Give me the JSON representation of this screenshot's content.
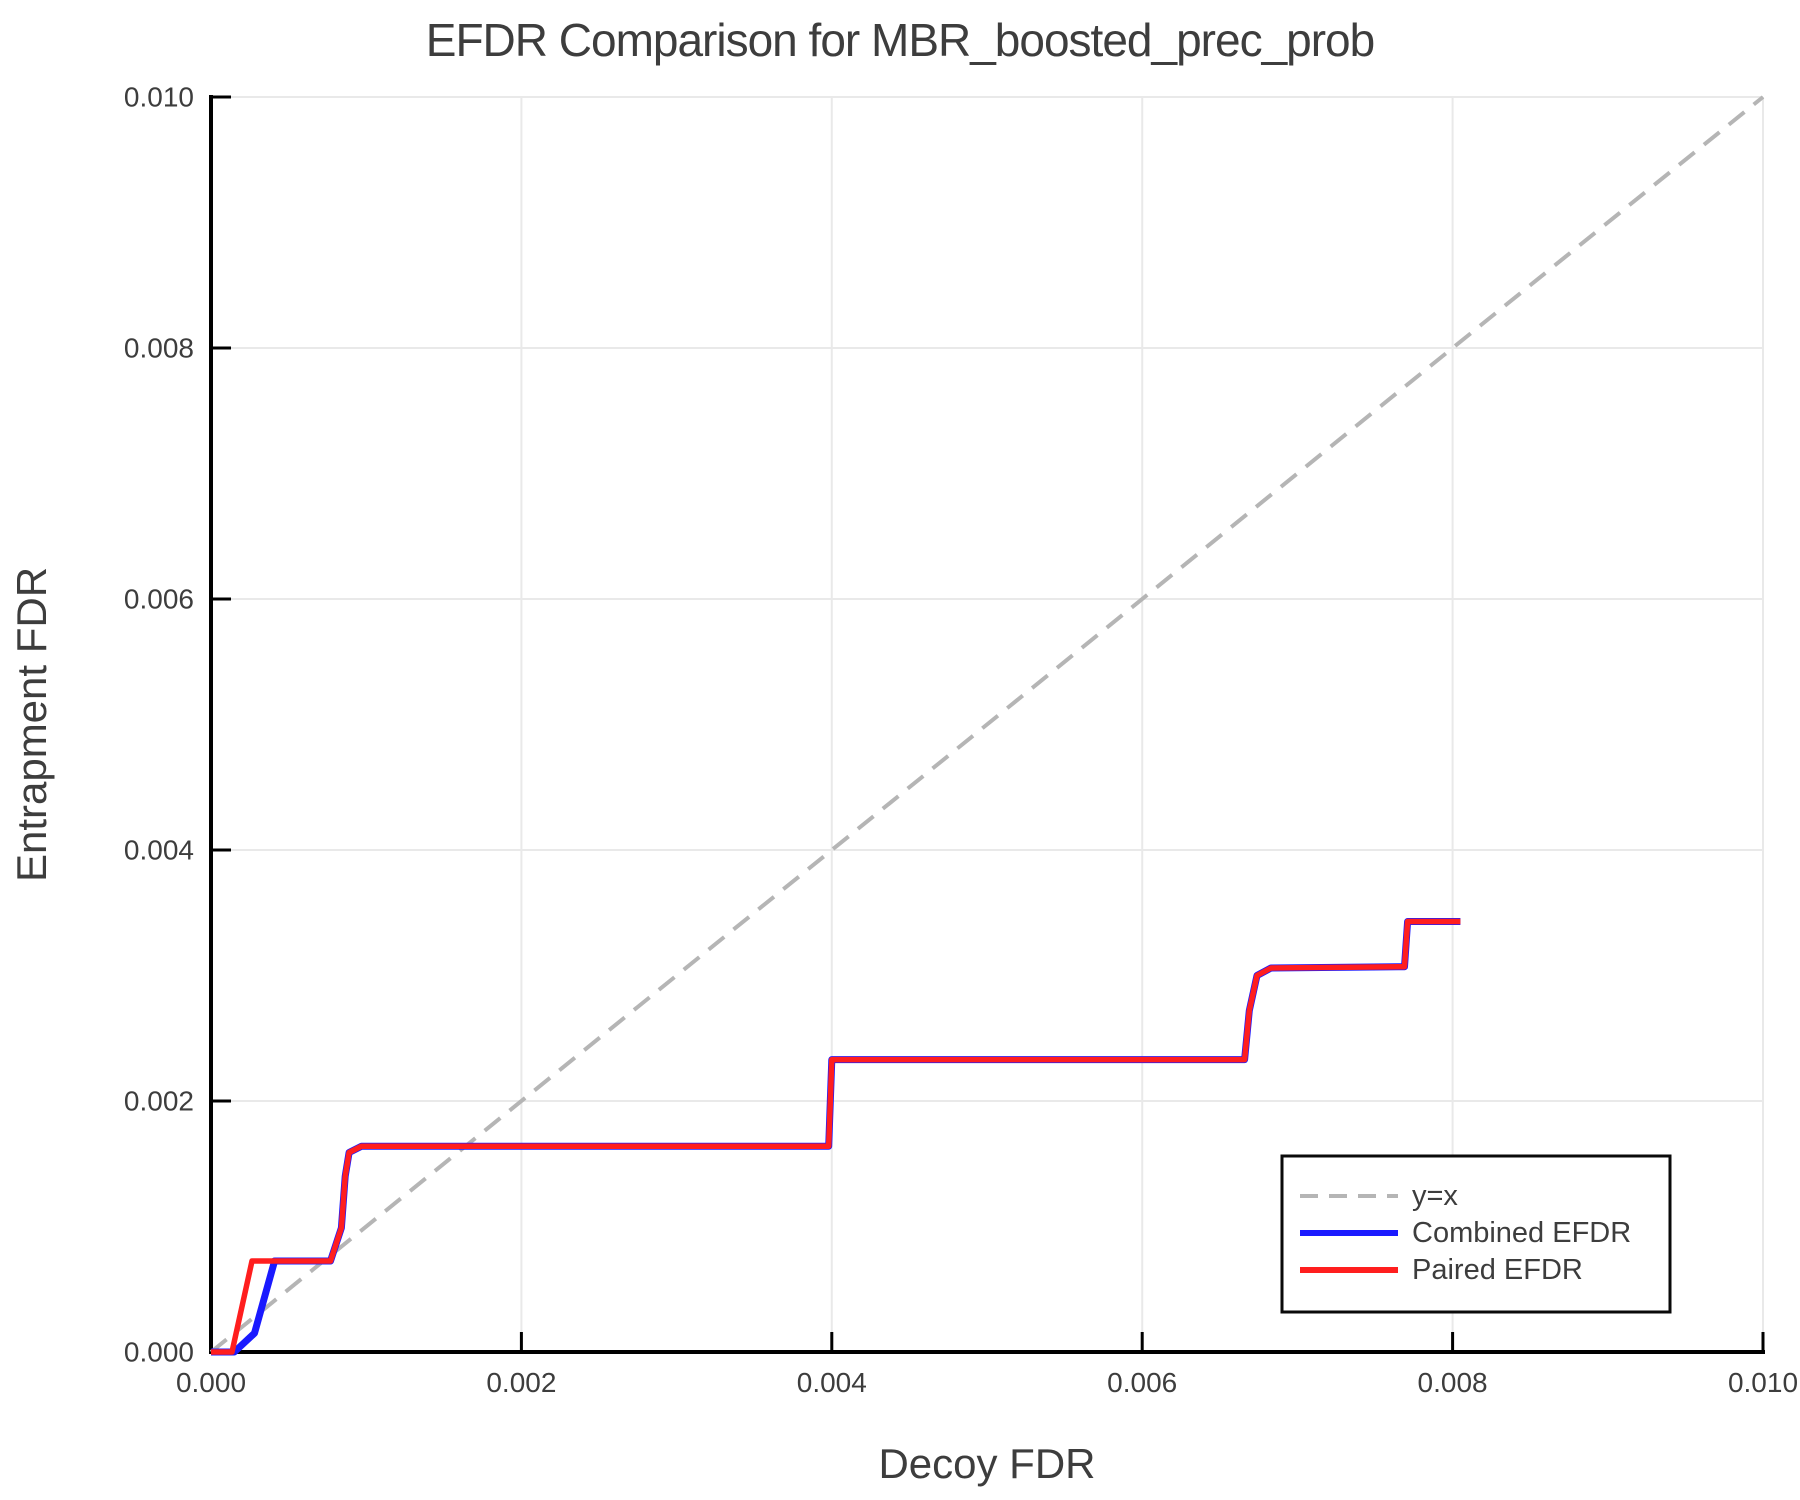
{
  "chart_data": {
    "type": "line",
    "title": "EFDR Comparison for MBR_boosted_prec_prob",
    "xlabel": "Decoy FDR",
    "ylabel": "Entrapment FDR",
    "xlim": [
      0,
      0.01
    ],
    "ylim": [
      0,
      0.01
    ],
    "xticks": [
      0,
      0.002,
      0.004,
      0.006,
      0.008,
      0.01
    ],
    "xtick_labels": [
      "0.000",
      "0.002",
      "0.004",
      "0.006",
      "0.008",
      "0.010"
    ],
    "yticks": [
      0,
      0.002,
      0.004,
      0.006,
      0.008,
      0.01
    ],
    "ytick_labels": [
      "0.000",
      "0.002",
      "0.004",
      "0.006",
      "0.008",
      "0.010"
    ],
    "grid": true,
    "grid_color": "#e9e9e9",
    "axis_color": "#000000",
    "text_color": "#3d3d3d",
    "legend_position": "lower right",
    "series": [
      {
        "name": "y=x",
        "color": "#b5b5b5",
        "dash": true,
        "width": 4,
        "points": [
          [
            0,
            0
          ],
          [
            0.01,
            0.01
          ]
        ]
      },
      {
        "name": "Combined EFDR",
        "color": "#1a1aff",
        "dash": false,
        "width": 7,
        "points": [
          [
            0,
            0
          ],
          [
            0.00015,
            0
          ],
          [
            0.00028,
            0.00015
          ],
          [
            0.00041,
            0.000725
          ],
          [
            0.00077,
            0.000725
          ],
          [
            0.00084,
            0.00099
          ],
          [
            0.000865,
            0.0014
          ],
          [
            0.00089,
            0.00159
          ],
          [
            0.00097,
            0.00164
          ],
          [
            0.00398,
            0.00164
          ],
          [
            0.004,
            0.00233
          ],
          [
            0.00666,
            0.00233
          ],
          [
            0.00669,
            0.00272
          ],
          [
            0.00674,
            0.003
          ],
          [
            0.00683,
            0.00306
          ],
          [
            0.00769,
            0.00307
          ],
          [
            0.00771,
            0.00343
          ],
          [
            0.00805,
            0.00343
          ]
        ]
      },
      {
        "name": "Paired EFDR",
        "color": "#ff1e1e",
        "dash": false,
        "width": 5.5,
        "points": [
          [
            0,
            0
          ],
          [
            0.000135,
            0
          ],
          [
            0.000264,
            0.000725
          ],
          [
            0.00077,
            0.000725
          ],
          [
            0.00084,
            0.00099
          ],
          [
            0.000865,
            0.0014
          ],
          [
            0.00089,
            0.00159
          ],
          [
            0.00097,
            0.00164
          ],
          [
            0.00398,
            0.00164
          ],
          [
            0.004,
            0.00233
          ],
          [
            0.00666,
            0.00233
          ],
          [
            0.00669,
            0.00272
          ],
          [
            0.00674,
            0.003
          ],
          [
            0.00683,
            0.00306
          ],
          [
            0.00769,
            0.00307
          ],
          [
            0.00771,
            0.00343
          ],
          [
            0.00805,
            0.00343
          ]
        ]
      }
    ]
  }
}
